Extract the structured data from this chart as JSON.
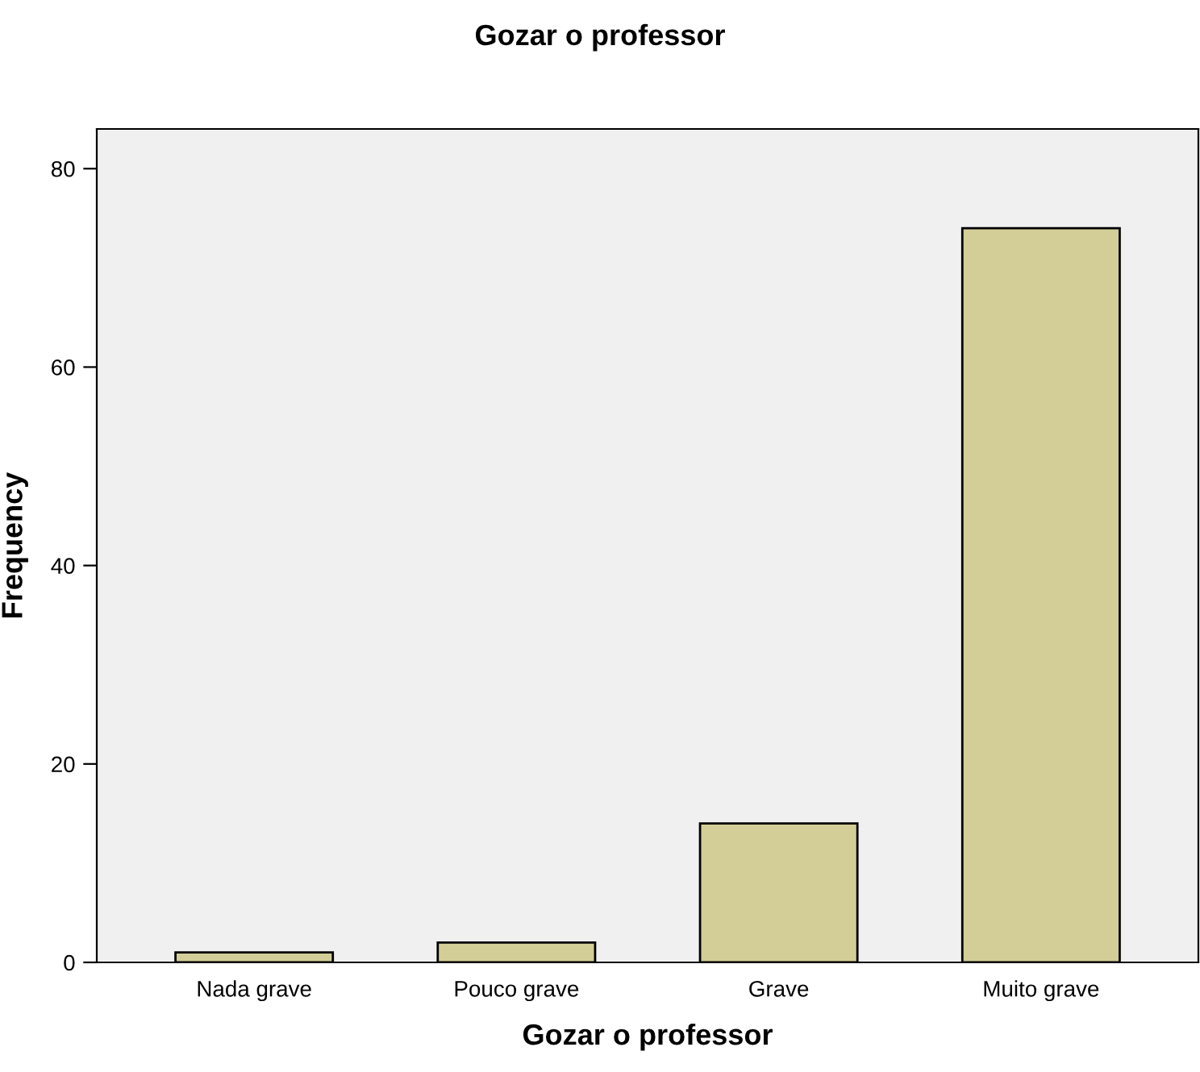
{
  "chart_data": {
    "type": "bar",
    "title": "Gozar o professor",
    "xlabel": "Gozar o professor",
    "ylabel": "Frequency",
    "categories": [
      "Nada grave",
      "Pouco grave",
      "Grave",
      "Muito grave"
    ],
    "values": [
      1,
      2,
      14,
      74
    ],
    "color": "#d3ce97",
    "ylim": [
      0,
      84
    ],
    "yticks": [
      0,
      20,
      40,
      60,
      80
    ],
    "grid": false,
    "legend": false
  }
}
